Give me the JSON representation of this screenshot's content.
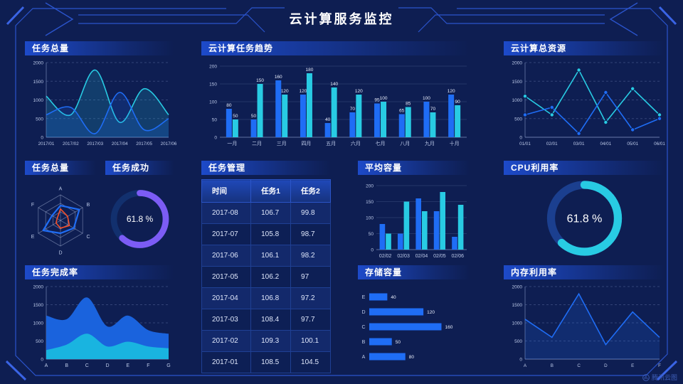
{
  "page": {
    "title": "云计算服务监控",
    "watermark": "腾讯云图",
    "background": "#0e1e52",
    "frame_color": "#2b54cc",
    "frame_accent": "#3f6cf5"
  },
  "colors": {
    "blue": "#1f6df5",
    "cyan": "#28cbe3",
    "purple": "#7c5cf5",
    "orange": "#f4502a",
    "axis_text": "#bcc9e8",
    "axis_line": "rgba(170,190,235,0.45)",
    "grid": "rgba(165,185,235,0.25)",
    "grid_soft": "rgba(165,185,235,0.15)",
    "label_text": "#e9eefb",
    "radar_web": "rgba(190,205,235,0.45)"
  },
  "chart_data": [
    {
      "id": "tasks-total",
      "type": "line",
      "title": "任务总量",
      "smooth": true,
      "area": true,
      "markers": false,
      "x": [
        "2017/01",
        "2017/02",
        "2017/03",
        "2017/04",
        "2017/05",
        "2017/06"
      ],
      "ylim": [
        0,
        2000
      ],
      "yticks": [
        0,
        500,
        1000,
        1500,
        2000
      ],
      "grid": "dashed",
      "series": [
        {
          "name": "cyan-series",
          "color": "cyan",
          "values": [
            1100,
            600,
            1800,
            400,
            1300,
            600
          ]
        },
        {
          "name": "blue-series",
          "color": "blue",
          "values": [
            600,
            800,
            100,
            1200,
            200,
            500
          ]
        }
      ]
    },
    {
      "id": "task-trend",
      "type": "bar",
      "title": "云计算任务趋势",
      "categories": [
        "一月",
        "二月",
        "三月",
        "四月",
        "五月",
        "六月",
        "七月",
        "八月",
        "九月",
        "十月"
      ],
      "ylim": [
        0,
        200
      ],
      "yticks": [
        0,
        50,
        100,
        150,
        200
      ],
      "labels": true,
      "series": [
        {
          "name": "blue-series",
          "color": "blue",
          "values": [
            80,
            50,
            160,
            120,
            40,
            70,
            95,
            65,
            100,
            120
          ]
        },
        {
          "name": "cyan-series",
          "color": "cyan",
          "values": [
            50,
            150,
            120,
            180,
            140,
            120,
            100,
            85,
            70,
            90
          ]
        }
      ]
    },
    {
      "id": "total-resources",
      "type": "line",
      "title": "云计算总资源",
      "smooth": false,
      "area": false,
      "markers": true,
      "x": [
        "01/01",
        "02/01",
        "03/01",
        "04/01",
        "05/01",
        "06/01"
      ],
      "ylim": [
        0,
        2000
      ],
      "yticks": [
        0,
        500,
        1000,
        1500,
        2000
      ],
      "grid": "dashed",
      "series": [
        {
          "name": "cyan-series",
          "color": "cyan",
          "values": [
            1100,
            600,
            1800,
            400,
            1300,
            600
          ]
        },
        {
          "name": "blue-series",
          "color": "blue",
          "values": [
            600,
            800,
            100,
            1200,
            200,
            500
          ]
        }
      ]
    },
    {
      "id": "task-radar",
      "type": "radar",
      "title": "任务总量",
      "axes": [
        "A",
        "B",
        "C",
        "D",
        "E",
        "F"
      ],
      "max": 100,
      "series": [
        {
          "name": "blue-series",
          "color": "blue",
          "values": [
            58,
            85,
            60,
            50,
            78,
            38
          ]
        },
        {
          "name": "orange-series",
          "color": "orange",
          "values": [
            45,
            32,
            40,
            30,
            20,
            15
          ]
        }
      ]
    },
    {
      "id": "task-success",
      "type": "donut",
      "title": "任务成功",
      "value": 61.8,
      "label": "61.8 %",
      "color": "purple",
      "track": "#12306e"
    },
    {
      "id": "task-table",
      "type": "table",
      "title": "任务管理",
      "columns": [
        "时间",
        "任务1",
        "任务2"
      ],
      "rows": [
        [
          "2017-08",
          "106.7",
          "99.8"
        ],
        [
          "2017-07",
          "105.8",
          "98.7"
        ],
        [
          "2017-06",
          "106.1",
          "98.2"
        ],
        [
          "2017-05",
          "106.2",
          "97"
        ],
        [
          "2017-04",
          "106.8",
          "97.2"
        ],
        [
          "2017-03",
          "108.4",
          "97.7"
        ],
        [
          "2017-02",
          "109.3",
          "100.1"
        ],
        [
          "2017-01",
          "108.5",
          "104.5"
        ]
      ]
    },
    {
      "id": "avg-capacity",
      "type": "bar",
      "title": "平均容量",
      "categories": [
        "02/02",
        "02/03",
        "02/04",
        "02/05",
        "02/06"
      ],
      "ylim": [
        0,
        200
      ],
      "yticks": [
        0,
        50,
        100,
        150,
        200
      ],
      "labels": false,
      "series": [
        {
          "name": "blue-series",
          "color": "blue",
          "values": [
            80,
            50,
            160,
            120,
            40
          ]
        },
        {
          "name": "cyan-series",
          "color": "cyan",
          "values": [
            50,
            150,
            120,
            180,
            140
          ]
        }
      ]
    },
    {
      "id": "cpu-usage",
      "type": "donut",
      "title": "CPU利用率",
      "value": 61.8,
      "label": "61.8 %",
      "color": "cyan",
      "track": "#1b3f8f"
    },
    {
      "id": "task-completion",
      "type": "area",
      "title": "任务完成率",
      "x": [
        "A",
        "B",
        "C",
        "D",
        "E",
        "F",
        "G"
      ],
      "ylim": [
        0,
        2000
      ],
      "yticks": [
        0,
        500,
        1000,
        1500,
        2000
      ],
      "series": [
        {
          "name": "blue-series",
          "color": "#1a63dd",
          "values": [
            1200,
            1100,
            1700,
            900,
            1200,
            800,
            700
          ]
        },
        {
          "name": "cyan-series",
          "color": "#19b4e0",
          "values": [
            250,
            400,
            700,
            350,
            480,
            350,
            300
          ]
        }
      ]
    },
    {
      "id": "storage",
      "type": "hbar",
      "title": "存储容量",
      "categories": [
        "E",
        "D",
        "C",
        "B",
        "A"
      ],
      "values": [
        40,
        120,
        160,
        50,
        80
      ],
      "xmax": 175
    },
    {
      "id": "memory-usage",
      "type": "line",
      "title": "内存利用率",
      "smooth": false,
      "area": true,
      "markers": false,
      "x": [
        "A",
        "B",
        "C",
        "D",
        "E",
        "F"
      ],
      "ylim": [
        0,
        2000
      ],
      "yticks": [
        0,
        500,
        1000,
        1500,
        2000
      ],
      "grid": "dashed",
      "series": [
        {
          "name": "blue-series",
          "color": "blue",
          "values": [
            1100,
            600,
            1800,
            400,
            1300,
            600
          ]
        }
      ]
    }
  ]
}
